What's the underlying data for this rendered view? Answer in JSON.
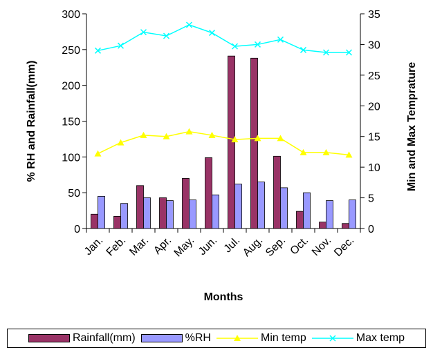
{
  "chart_data": {
    "type": "bar",
    "categories": [
      "Jan.",
      "Feb.",
      "Mar.",
      "Apr.",
      "May.",
      "Jun.",
      "Jul.",
      "Aug.",
      "Sep.",
      "Oct.",
      "Nov.",
      "Dec."
    ],
    "series": [
      {
        "name": "Rainfall(mm)",
        "kind": "bar",
        "axis": "left",
        "color": "#993366",
        "values": [
          20,
          17,
          60,
          43,
          70,
          99,
          241,
          238,
          101,
          24,
          9,
          7
        ]
      },
      {
        "name": "%RH",
        "kind": "bar",
        "axis": "left",
        "color": "#9999FF",
        "values": [
          45,
          35,
          43,
          39,
          40,
          47,
          62,
          65,
          57,
          50,
          39,
          40
        ]
      },
      {
        "name": "Min temp",
        "kind": "line",
        "axis": "right",
        "color": "#FFFF00",
        "marker": "triangle",
        "values": [
          12.2,
          14.0,
          15.2,
          15.0,
          15.8,
          15.2,
          14.5,
          14.7,
          14.7,
          12.4,
          12.4,
          12.0
        ]
      },
      {
        "name": "Max temp",
        "kind": "line",
        "axis": "right",
        "color": "#00FFFF",
        "marker": "x",
        "values": [
          29.0,
          29.8,
          32.0,
          31.4,
          33.2,
          31.9,
          29.7,
          30.0,
          30.8,
          29.1,
          28.7,
          28.7
        ]
      }
    ],
    "xlabel": "Months",
    "ylabel": "% RH and Rainfall(mm)",
    "y2label": "Min and Max Temprature",
    "ylim": [
      0,
      300
    ],
    "yticks": [
      0,
      50,
      100,
      150,
      200,
      250,
      300
    ],
    "y2lim": [
      0,
      35
    ],
    "y2ticks": [
      0,
      5,
      10,
      15,
      20,
      25,
      30,
      35
    ],
    "grid": false,
    "legend_position": "bottom"
  }
}
